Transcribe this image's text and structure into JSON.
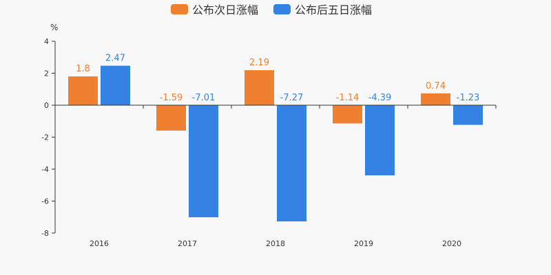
{
  "chart_data": {
    "type": "bar",
    "categories": [
      "2016",
      "2017",
      "2018",
      "2019",
      "2020"
    ],
    "series": [
      {
        "name": "公布次日涨幅",
        "color": "#f0802f",
        "values": [
          1.8,
          -1.59,
          2.19,
          -1.14,
          0.74
        ],
        "labels": [
          "1.8",
          "-1.59",
          "2.19",
          "-1.14",
          "0.74"
        ]
      },
      {
        "name": "公布后五日涨幅",
        "color": "#3483e4",
        "values": [
          2.47,
          -7.01,
          -7.27,
          -4.39,
          -1.23
        ],
        "labels": [
          "2.47",
          "-7.01",
          "-7.27",
          "-4.39",
          "-1.23"
        ]
      }
    ],
    "ylabel": "%",
    "ylim": [
      -8,
      4
    ],
    "yticks": [
      "-8",
      "-6",
      "-4",
      "-2",
      "0",
      "2",
      "4"
    ],
    "grid": false,
    "legend_position": "top-center"
  }
}
